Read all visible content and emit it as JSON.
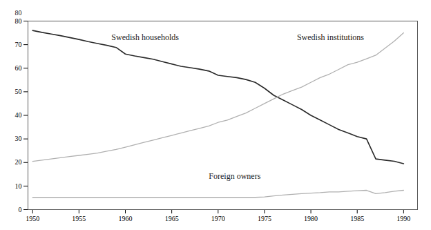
{
  "chart_data": {
    "type": "line",
    "x": [
      1950,
      1951,
      1952,
      1953,
      1954,
      1955,
      1956,
      1957,
      1958,
      1959,
      1960,
      1961,
      1962,
      1963,
      1964,
      1965,
      1966,
      1967,
      1968,
      1969,
      1970,
      1971,
      1972,
      1973,
      1974,
      1975,
      1976,
      1977,
      1978,
      1979,
      1980,
      1981,
      1982,
      1983,
      1984,
      1985,
      1986,
      1987,
      1988,
      1989,
      1990
    ],
    "series": [
      {
        "color": "#2a2a2a",
        "values": [
          76,
          75.2,
          74.5,
          73.8,
          73.0,
          72.2,
          71.3,
          70.5,
          69.7,
          68.8,
          66.0,
          65.2,
          64.5,
          63.8,
          62.8,
          61.8,
          60.8,
          60.2,
          59.6,
          58.8,
          57.0,
          56.5,
          56.0,
          55.2,
          54.0,
          51.5,
          48.5,
          46.5,
          44.5,
          42.5,
          40.0,
          38.0,
          36.0,
          34.0,
          32.5,
          31.0,
          30.0,
          21.5,
          21.0,
          20.5,
          19.5
        ]
      },
      {
        "color": "#b0b0b0",
        "values": [
          20.5,
          21.0,
          21.5,
          22.0,
          22.5,
          23.0,
          23.5,
          24.0,
          24.8,
          25.5,
          26.5,
          27.5,
          28.5,
          29.5,
          30.5,
          31.5,
          32.5,
          33.5,
          34.5,
          35.5,
          37.0,
          38.0,
          39.5,
          41.0,
          43.0,
          45.0,
          47.0,
          49.0,
          50.5,
          52.0,
          54.0,
          56.0,
          57.5,
          59.5,
          61.5,
          62.5,
          64.0,
          65.5,
          68.5,
          71.5,
          75.0
        ]
      },
      {
        "color": "#b0b0b0",
        "values": [
          5.2,
          5.2,
          5.2,
          5.2,
          5.2,
          5.2,
          5.2,
          5.2,
          5.2,
          5.2,
          5.2,
          5.2,
          5.2,
          5.2,
          5.2,
          5.2,
          5.2,
          5.2,
          5.2,
          5.2,
          5.2,
          5.2,
          5.2,
          5.2,
          5.2,
          5.4,
          5.8,
          6.2,
          6.5,
          6.8,
          7.0,
          7.2,
          7.5,
          7.5,
          7.8,
          8.0,
          8.2,
          6.8,
          7.2,
          7.8,
          8.2
        ]
      }
    ],
    "annotations": [
      {
        "x": 1958.5,
        "y": 72,
        "text": "Swedish households"
      },
      {
        "x": 1978.5,
        "y": 72,
        "text": "Swedish institutions"
      },
      {
        "x": 1969,
        "y": 13,
        "text": "Foreign owners"
      },
      {
        "text": "80"
      }
    ],
    "xlim": [
      1949.5,
      1991.5
    ],
    "ylim": [
      0,
      80
    ],
    "xticks": [
      1950,
      1955,
      1960,
      1965,
      1970,
      1975,
      1980,
      1985,
      1990
    ],
    "yticks": [
      0,
      10,
      20,
      30,
      40,
      50,
      60,
      70,
      80
    ],
    "grid": false
  }
}
